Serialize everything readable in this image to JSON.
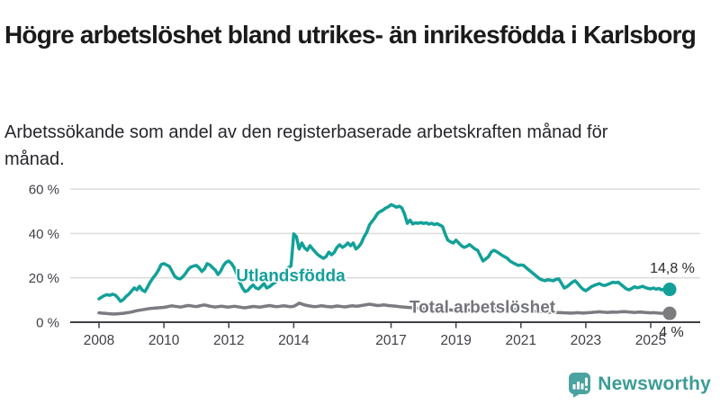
{
  "header": {
    "title": "Högre arbetslöshet bland utrikes- än inrikesfödda i Karlsborg",
    "subtitle": "Arbetssökande som andel av den registerbaserade arbetskraften månad för månad."
  },
  "chart_data": {
    "type": "line",
    "x_start_year": 2008,
    "x_step_months": 1,
    "x_end_label_note": "series end mid-2025",
    "ylim": [
      0,
      64
    ],
    "yticks": [
      0,
      20,
      40,
      60
    ],
    "ytick_labels": [
      "0 %",
      "20 %",
      "40 %",
      "60 %"
    ],
    "xticks": [
      2008,
      2010,
      2012,
      2014,
      2017,
      2019,
      2021,
      2023,
      2025
    ],
    "grid": "horizontal",
    "legend_position": "inline-labels",
    "axis_color": "#3f3f46",
    "grid_color": "#dcdcdc",
    "value_label_color": "#2b2b2b",
    "series": [
      {
        "name": "Utlandsfödda",
        "color": "#13a099",
        "label_color": "#13a099",
        "end_label": "14,8 %",
        "end_value": 14.8,
        "values": [
          10.5,
          11.3,
          12.0,
          12.4,
          12.1,
          12.6,
          12.2,
          11.0,
          9.4,
          10.2,
          11.6,
          12.6,
          14.0,
          15.4,
          14.6,
          16.2,
          14.5,
          13.8,
          16.0,
          18.2,
          20.0,
          21.5,
          23.5,
          26.0,
          26.4,
          25.8,
          25.2,
          23.0,
          20.7,
          19.8,
          19.5,
          20.5,
          22.0,
          23.8,
          24.9,
          25.3,
          25.6,
          24.5,
          22.9,
          24.0,
          26.4,
          25.8,
          24.6,
          23.5,
          21.5,
          23.0,
          25.5,
          27.0,
          27.6,
          26.5,
          24.5,
          21.5,
          18.0,
          15.5,
          13.8,
          14.3,
          15.8,
          16.8,
          15.4,
          15.0,
          16.2,
          17.4,
          15.4,
          16.0,
          17.0,
          17.8,
          18.8,
          20.0,
          21.5,
          23.0,
          24.5,
          25.4,
          39.8,
          38.5,
          33.0,
          35.7,
          33.5,
          32.4,
          34.5,
          33.0,
          31.6,
          30.4,
          29.5,
          28.8,
          29.6,
          31.6,
          30.4,
          31.5,
          33.7,
          34.9,
          33.7,
          34.5,
          35.7,
          34.5,
          35.7,
          33.0,
          34.0,
          35.7,
          38.5,
          40.5,
          43.8,
          45.5,
          47.0,
          49.0,
          49.9,
          50.5,
          51.5,
          52.0,
          53.0,
          52.5,
          51.8,
          52.3,
          51.5,
          48.6,
          44.6,
          46.0,
          44.3,
          44.8,
          44.6,
          44.9,
          44.5,
          44.8,
          44.2,
          44.6,
          44.0,
          44.4,
          43.8,
          43.2,
          39.8,
          37.0,
          36.2,
          35.7,
          37.0,
          35.7,
          34.5,
          33.7,
          34.2,
          35.0,
          34.0,
          33.0,
          32.4,
          30.0,
          27.6,
          28.5,
          29.5,
          31.6,
          32.4,
          31.8,
          31.0,
          30.2,
          29.5,
          28.8,
          27.5,
          26.8,
          26.2,
          25.6,
          25.8,
          25.6,
          24.5,
          23.5,
          22.5,
          21.5,
          20.5,
          19.5,
          19.0,
          18.7,
          19.2,
          18.9,
          18.7,
          19.3,
          19.5,
          17.5,
          15.4,
          16.0,
          17.0,
          18.0,
          18.7,
          17.5,
          16.0,
          14.8,
          14.2,
          15.0,
          16.0,
          16.5,
          17.0,
          17.4,
          16.8,
          16.5,
          17.0,
          17.5,
          18.0,
          17.8,
          18.0,
          17.0,
          16.0,
          15.0,
          14.6,
          15.2,
          16.0,
          15.5,
          15.8,
          16.2,
          15.6,
          15.2,
          15.0,
          15.4,
          14.9,
          15.2,
          14.6,
          14.9,
          14.9,
          14.8
        ]
      },
      {
        "name": "Total arbetslöshet",
        "color": "#7b7b80",
        "label_color": "#75757e",
        "end_label": "4 %",
        "end_value": 4.0,
        "values": [
          4.2,
          4.1,
          4.0,
          3.9,
          3.8,
          3.7,
          3.7,
          3.8,
          3.9,
          4.0,
          4.2,
          4.4,
          4.6,
          4.9,
          5.2,
          5.4,
          5.6,
          5.8,
          6.0,
          6.2,
          6.3,
          6.4,
          6.5,
          6.6,
          6.7,
          6.9,
          7.2,
          7.4,
          7.2,
          7.0,
          6.8,
          7.0,
          7.3,
          7.5,
          7.4,
          7.2,
          7.0,
          7.3,
          7.6,
          7.8,
          7.5,
          7.2,
          7.0,
          6.8,
          7.0,
          7.2,
          7.1,
          6.9,
          6.8,
          7.0,
          7.2,
          7.0,
          6.8,
          6.6,
          6.5,
          6.7,
          6.9,
          7.1,
          7.0,
          6.8,
          6.9,
          7.1,
          7.3,
          7.5,
          7.3,
          7.1,
          7.0,
          7.2,
          7.4,
          7.3,
          7.1,
          7.0,
          7.2,
          7.8,
          8.6,
          8.2,
          7.8,
          7.5,
          7.3,
          7.1,
          7.0,
          7.2,
          7.4,
          7.3,
          7.1,
          7.0,
          6.9,
          7.1,
          7.3,
          7.2,
          7.0,
          6.9,
          7.1,
          7.3,
          7.4,
          7.2,
          7.3,
          7.5,
          7.7,
          7.9,
          8.1,
          7.9,
          7.7,
          7.5,
          7.6,
          7.8,
          7.7,
          7.5,
          7.4,
          7.3,
          7.2,
          7.0,
          6.9,
          6.8,
          6.7,
          6.6,
          6.5,
          6.4,
          6.3,
          6.2,
          6.1,
          6.0,
          5.9,
          5.8,
          5.9,
          6.0,
          5.9,
          5.8,
          5.7,
          5.6,
          5.5,
          5.4,
          5.5,
          5.6,
          5.7,
          5.6,
          5.5,
          5.4,
          5.3,
          5.2,
          5.3,
          5.4,
          5.3,
          5.2,
          5.4,
          5.7,
          6.2,
          6.5,
          6.7,
          6.6,
          6.4,
          6.2,
          6.0,
          5.8,
          5.7,
          5.6,
          5.5,
          5.4,
          5.3,
          5.2,
          5.1,
          5.0,
          4.9,
          4.8,
          4.7,
          4.6,
          4.5,
          4.5,
          4.4,
          4.4,
          4.3,
          4.3,
          4.2,
          4.2,
          4.1,
          4.1,
          4.2,
          4.3,
          4.2,
          4.1,
          4.2,
          4.3,
          4.4,
          4.5,
          4.6,
          4.7,
          4.6,
          4.5,
          4.4,
          4.5,
          4.6,
          4.5,
          4.6,
          4.7,
          4.8,
          4.7,
          4.6,
          4.5,
          4.4,
          4.5,
          4.6,
          4.5,
          4.4,
          4.3,
          4.2,
          4.3,
          4.2,
          4.1,
          4.0,
          4.1,
          4.0,
          4.0
        ]
      }
    ]
  },
  "logo": {
    "text": "Newsworthy",
    "icon": "bar-chart-speech-bubble-icon",
    "brand_color": "#4aa3a0"
  }
}
